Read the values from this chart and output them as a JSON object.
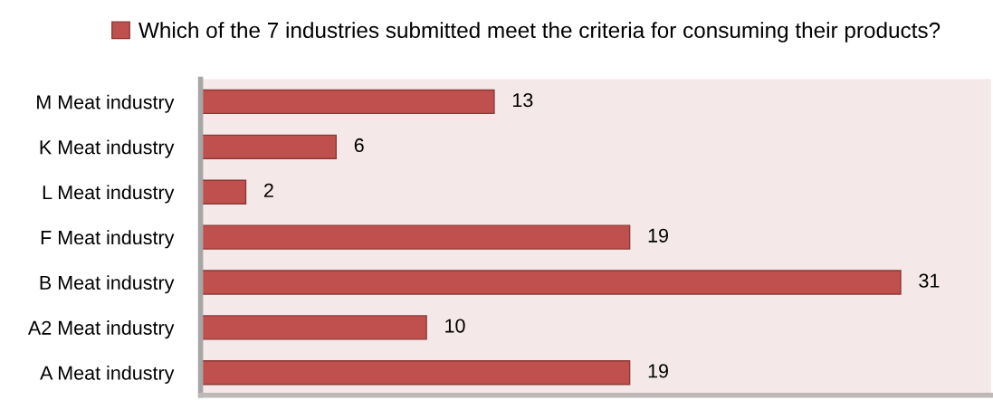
{
  "chart_data": {
    "type": "bar",
    "orientation": "horizontal",
    "legend": "top",
    "categories": [
      "M Meat industry",
      "K Meat industry",
      "L Meat industry",
      "F Meat industry",
      "B Meat industry",
      "A2 Meat industry",
      "A Meat industry"
    ],
    "series": [
      {
        "name": "Which of the 7 industries submitted meet the criteria for consuming their products?",
        "color": "#c0504d",
        "values": [
          13,
          6,
          2,
          19,
          31,
          10,
          19
        ]
      }
    ],
    "data_labels": true,
    "xlim": [
      0,
      35
    ],
    "tick_labels": "y"
  }
}
